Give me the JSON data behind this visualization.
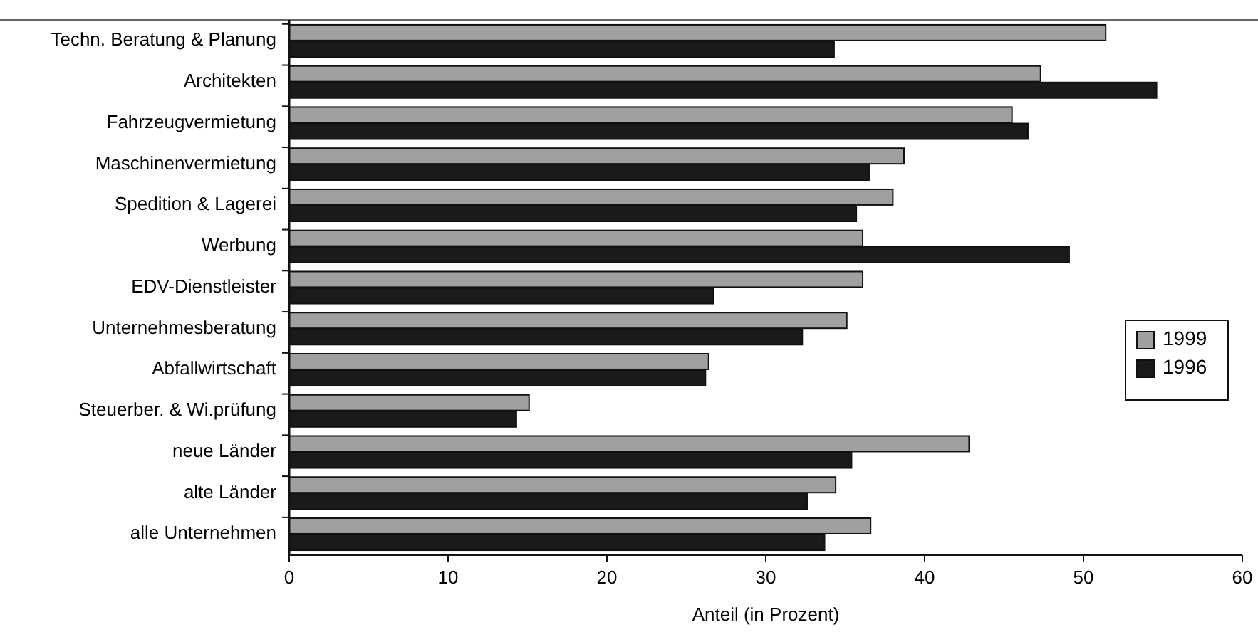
{
  "chart_data": {
    "type": "bar",
    "orientation": "horizontal",
    "xlabel": "Anteil (in Prozent)",
    "categories": [
      "Techn. Beratung & Planung",
      "Architekten",
      "Fahrzeugvermietung",
      "Maschinenvermietung",
      "Spedition & Lagerei",
      "Werbung",
      "EDV-Dienstleister",
      "Unternehmesberatung",
      "Abfallwirtschaft",
      "Steuerber. & Wi.prüfung",
      "neue Länder",
      "alte Länder",
      "alle Unternehmen"
    ],
    "series": [
      {
        "name": "1999",
        "color": "#a0a0a0",
        "values": [
          51.4,
          47.3,
          45.5,
          38.7,
          38.0,
          36.1,
          36.1,
          35.1,
          26.4,
          15.1,
          42.8,
          34.4,
          36.6
        ]
      },
      {
        "name": "1996",
        "color": "#1a1a1a",
        "values": [
          34.3,
          54.6,
          46.5,
          36.5,
          35.7,
          49.1,
          26.7,
          32.3,
          26.2,
          14.3,
          35.4,
          32.6,
          33.7
        ]
      }
    ],
    "xlim": [
      0,
      60
    ],
    "xticks": [
      0,
      10,
      20,
      30,
      40,
      50,
      60
    ],
    "legend": "right"
  }
}
